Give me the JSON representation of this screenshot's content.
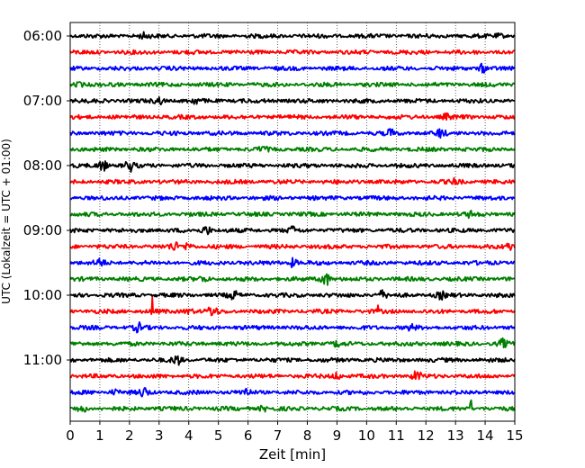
{
  "chart_data": {
    "type": "line",
    "title": "",
    "xlabel": "Zeit  [min]",
    "ylabel": "UTC (Lokalzeit = UTC + 01:00)",
    "xlim": [
      0,
      15
    ],
    "x_ticks": [
      "0",
      "1",
      "2",
      "3",
      "4",
      "5",
      "6",
      "7",
      "8",
      "9",
      "10",
      "11",
      "12",
      "13",
      "14",
      "15"
    ],
    "y_ticks": [
      "06:00",
      "07:00",
      "08:00",
      "09:00",
      "10:00",
      "11:00"
    ],
    "grid": "vertical-dotted",
    "trace_interval_minutes": 15,
    "start_time": "06:00",
    "colors": [
      "#000000",
      "#ff0000",
      "#0000ff",
      "#008000"
    ],
    "traces": [
      {
        "start": "06:00",
        "color": "#000000",
        "events": [
          {
            "t": 2.5,
            "amp": 0.3
          },
          {
            "t": 14.5,
            "amp": 0.2
          }
        ]
      },
      {
        "start": "06:15",
        "color": "#ff0000",
        "events": []
      },
      {
        "start": "06:30",
        "color": "#0000ff",
        "events": [
          {
            "t": 13.9,
            "amp": 0.5
          }
        ]
      },
      {
        "start": "06:45",
        "color": "#008000",
        "events": [
          {
            "t": 0.3,
            "amp": 0.3
          }
        ]
      },
      {
        "start": "07:00",
        "color": "#000000",
        "events": [
          {
            "t": 3.0,
            "amp": 0.4
          },
          {
            "t": 4.2,
            "amp": 0.3
          }
        ]
      },
      {
        "start": "07:15",
        "color": "#ff0000",
        "events": [
          {
            "t": 12.7,
            "amp": 0.3
          }
        ]
      },
      {
        "start": "07:30",
        "color": "#0000ff",
        "events": [
          {
            "t": 10.8,
            "amp": 0.4
          },
          {
            "t": 12.5,
            "amp": 0.5
          }
        ]
      },
      {
        "start": "07:45",
        "color": "#008000",
        "events": [
          {
            "t": 6.5,
            "amp": 0.3
          }
        ]
      },
      {
        "start": "08:00",
        "color": "#000000",
        "events": [
          {
            "t": 1.1,
            "amp": 0.7
          },
          {
            "t": 2.0,
            "amp": 0.7
          }
        ]
      },
      {
        "start": "08:15",
        "color": "#ff0000",
        "events": [
          {
            "t": 13.0,
            "amp": 0.3
          }
        ]
      },
      {
        "start": "08:30",
        "color": "#0000ff",
        "events": []
      },
      {
        "start": "08:45",
        "color": "#008000",
        "events": [
          {
            "t": 13.5,
            "amp": 0.3
          }
        ]
      },
      {
        "start": "09:00",
        "color": "#000000",
        "events": [
          {
            "t": 4.6,
            "amp": 0.6
          },
          {
            "t": 7.5,
            "amp": 0.4
          }
        ]
      },
      {
        "start": "09:15",
        "color": "#ff0000",
        "events": [
          {
            "t": 3.5,
            "amp": 0.5
          },
          {
            "t": 4.0,
            "amp": 0.5
          },
          {
            "t": 14.8,
            "amp": 0.4
          }
        ]
      },
      {
        "start": "09:30",
        "color": "#0000ff",
        "events": [
          {
            "t": 1.0,
            "amp": 0.5
          },
          {
            "t": 7.5,
            "amp": 0.5
          }
        ]
      },
      {
        "start": "09:45",
        "color": "#008000",
        "events": [
          {
            "t": 8.6,
            "amp": 1.0
          },
          {
            "t": 4.5,
            "amp": 0.3
          }
        ]
      },
      {
        "start": "10:00",
        "color": "#000000",
        "events": [
          {
            "t": 5.5,
            "amp": 0.5
          },
          {
            "t": 10.5,
            "amp": 0.5
          },
          {
            "t": 12.5,
            "amp": 0.4
          }
        ]
      },
      {
        "start": "10:15",
        "color": "#ff0000",
        "events": [
          {
            "t": 2.75,
            "amp": 3.3
          },
          {
            "t": 10.4,
            "amp": 1.6
          },
          {
            "t": 4.8,
            "amp": 0.7
          },
          {
            "t": 4.0,
            "amp": 0.4
          }
        ]
      },
      {
        "start": "10:30",
        "color": "#0000ff",
        "events": [
          {
            "t": 2.3,
            "amp": 0.5
          },
          {
            "t": 11.5,
            "amp": 0.3
          }
        ]
      },
      {
        "start": "10:45",
        "color": "#008000",
        "events": [
          {
            "t": 14.6,
            "amp": 0.5
          },
          {
            "t": 9.0,
            "amp": 0.3
          }
        ]
      },
      {
        "start": "11:00",
        "color": "#000000",
        "events": [
          {
            "t": 3.6,
            "amp": 0.6
          }
        ]
      },
      {
        "start": "11:15",
        "color": "#ff0000",
        "events": [
          {
            "t": 11.7,
            "amp": 0.6
          },
          {
            "t": 9.0,
            "amp": 0.4
          }
        ]
      },
      {
        "start": "11:30",
        "color": "#0000ff",
        "events": [
          {
            "t": 2.5,
            "amp": 0.6
          },
          {
            "t": 5.9,
            "amp": 0.5
          },
          {
            "t": 1.5,
            "amp": 0.3
          }
        ]
      },
      {
        "start": "11:45",
        "color": "#008000",
        "events": [
          {
            "t": 13.5,
            "amp": 1.5
          },
          {
            "t": 0.4,
            "amp": 0.4
          },
          {
            "t": 6.5,
            "amp": 0.3
          }
        ]
      }
    ]
  }
}
